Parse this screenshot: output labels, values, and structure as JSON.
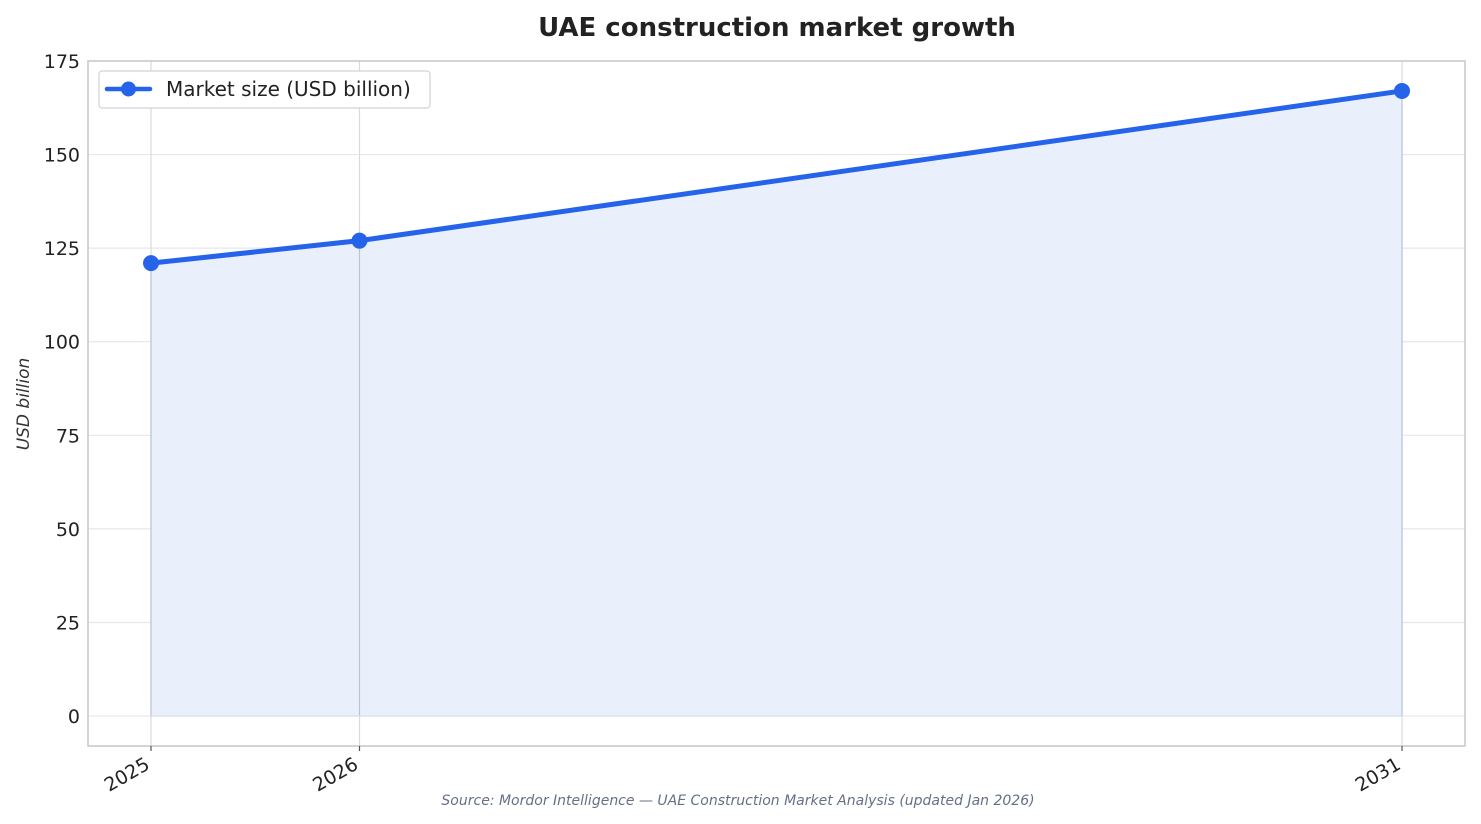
{
  "chart_data": {
    "type": "area",
    "title": "UAE construction market growth",
    "xlabel": "",
    "ylabel": "USD billion",
    "categories": [
      "2025",
      "2026",
      "2031"
    ],
    "x": [
      2025,
      2026,
      2031
    ],
    "series": [
      {
        "name": "Market size (USD billion)",
        "values": [
          121,
          127,
          167
        ]
      }
    ],
    "ylim": [
      -8,
      175
    ],
    "yticks": [
      0,
      25,
      50,
      75,
      100,
      125,
      150,
      175
    ],
    "grid": true,
    "legend_position": "top-left",
    "source": "Source: Mordor Intelligence — UAE Construction Market Analysis (updated Jan 2026)",
    "colors": {
      "line": "#2563eb",
      "fill": "#eaf0fb",
      "grid": "#e5e7eb",
      "frame": "#c4c7cc"
    }
  }
}
